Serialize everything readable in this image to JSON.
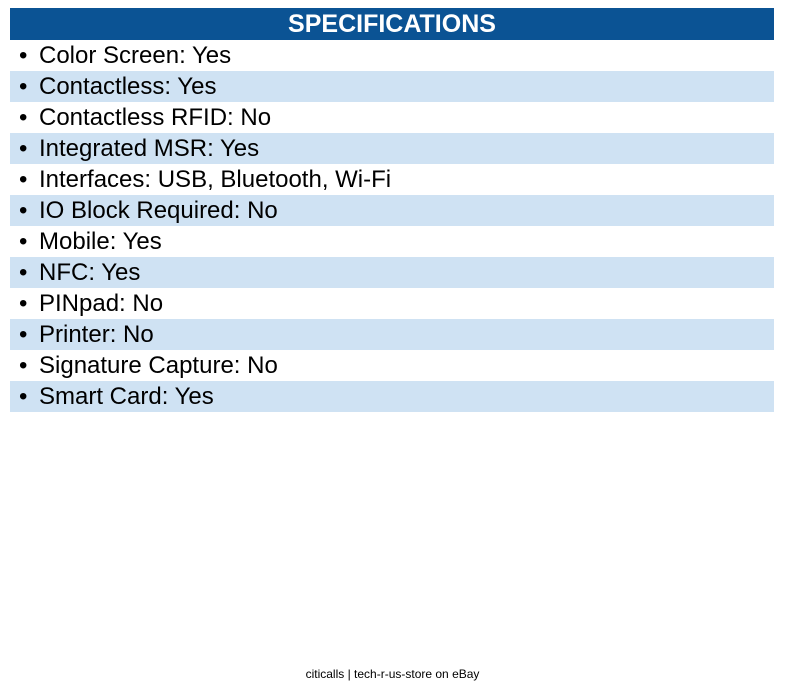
{
  "header": {
    "title": "SPECIFICATIONS"
  },
  "items": [
    "Color Screen: Yes",
    "Contactless: Yes",
    "Contactless RFID: No",
    "Integrated MSR: Yes",
    "Interfaces: USB, Bluetooth, Wi-Fi",
    "IO Block Required: No",
    "Mobile: Yes",
    "NFC: Yes",
    "PINpad: No",
    "Printer: No",
    "Signature Capture: No",
    "Smart Card: Yes"
  ],
  "footer": {
    "text": "citicalls | tech-r-us-store on eBay"
  }
}
